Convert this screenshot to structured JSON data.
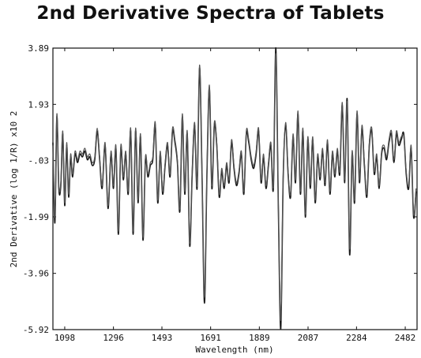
{
  "chart_data": {
    "type": "line",
    "title": "2nd Derivative Spectra of Tablets",
    "xlabel": "Wavelength (nm)",
    "ylabel": "2nd Derivative (log 1/R) x10 2",
    "xlim": [
      1050,
      2530
    ],
    "ylim": [
      -5.92,
      3.89
    ],
    "x_ticks": [
      1098,
      1296,
      1493,
      1691,
      1889,
      2087,
      2284,
      2482
    ],
    "y_ticks": [
      3.89,
      1.93,
      -0.03,
      -1.99,
      -3.96,
      -5.92
    ],
    "y_tick_labels": [
      "3.89",
      "1.93",
      "-.03",
      "-1.99",
      "-3.96",
      "-5.92"
    ],
    "grid": false,
    "series": [
      {
        "color": "#1a1a1a",
        "x": [
          1050,
          1058,
          1066,
          1074,
          1082,
          1090,
          1098,
          1106,
          1114,
          1122,
          1130,
          1140,
          1150,
          1160,
          1170,
          1180,
          1190,
          1200,
          1210,
          1220,
          1230,
          1240,
          1250,
          1262,
          1274,
          1286,
          1296,
          1306,
          1316,
          1326,
          1336,
          1346,
          1356,
          1366,
          1376,
          1386,
          1396,
          1406,
          1416,
          1426,
          1436,
          1446,
          1456,
          1466,
          1476,
          1486,
          1496,
          1506,
          1516,
          1526,
          1536,
          1546,
          1556,
          1566,
          1576,
          1586,
          1596,
          1606,
          1616,
          1626,
          1636,
          1646,
          1656,
          1666,
          1676,
          1686,
          1696,
          1706,
          1716,
          1726,
          1736,
          1746,
          1756,
          1766,
          1776,
          1786,
          1796,
          1806,
          1816,
          1826,
          1836,
          1846,
          1856,
          1866,
          1876,
          1886,
          1896,
          1906,
          1916,
          1926,
          1936,
          1946,
          1956,
          1966,
          1976,
          1986,
          1996,
          2006,
          2016,
          2026,
          2036,
          2046,
          2056,
          2066,
          2076,
          2086,
          2096,
          2106,
          2116,
          2126,
          2136,
          2146,
          2156,
          2166,
          2176,
          2186,
          2196,
          2206,
          2216,
          2226,
          2236,
          2246,
          2256,
          2266,
          2276,
          2286,
          2296,
          2306,
          2316,
          2326,
          2336,
          2346,
          2356,
          2366,
          2376,
          2386,
          2396,
          2406,
          2416,
          2426,
          2436,
          2446,
          2456,
          2466,
          2476,
          2486,
          2496,
          2506,
          2516,
          2526
        ],
        "y": [
          0.6,
          -2.2,
          1.5,
          -1.0,
          -0.9,
          0.9,
          -1.6,
          0.5,
          -1.3,
          0.1,
          -0.6,
          0.2,
          -0.1,
          0.2,
          0.1,
          0.3,
          0.0,
          0.1,
          -0.2,
          0.0,
          1.0,
          0.0,
          -1.0,
          0.5,
          -1.7,
          0.2,
          -1.0,
          0.4,
          -2.6,
          0.4,
          -0.7,
          0.2,
          -1.2,
          1.0,
          -2.6,
          1.0,
          -1.5,
          0.8,
          -2.8,
          0.0,
          -0.6,
          -0.2,
          0.0,
          1.2,
          -1.5,
          0.2,
          -1.2,
          -0.2,
          0.5,
          -0.6,
          1.0,
          0.6,
          -0.1,
          -1.8,
          1.5,
          -1.2,
          0.9,
          -3.0,
          -0.5,
          1.2,
          -1.0,
          3.2,
          -0.5,
          -5.0,
          -0.5,
          2.5,
          -1.0,
          1.2,
          0.5,
          -1.3,
          -0.4,
          -1.0,
          -0.2,
          -0.8,
          0.6,
          -0.3,
          -0.9,
          -0.5,
          0.2,
          -1.2,
          0.9,
          0.6,
          0.0,
          -0.3,
          0.2,
          1.0,
          -0.8,
          0.1,
          -1.0,
          -0.2,
          0.5,
          -1.0,
          3.9,
          -1.5,
          -5.9,
          -0.6,
          1.2,
          -0.5,
          -1.3,
          0.8,
          -0.8,
          1.6,
          -1.2,
          1.0,
          -2.0,
          0.7,
          -1.0,
          0.7,
          -1.5,
          0.1,
          -0.7,
          0.3,
          -0.9,
          0.6,
          -1.2,
          0.2,
          -0.6,
          0.3,
          -0.5,
          1.9,
          -0.8,
          2.1,
          -3.3,
          0.2,
          -1.5,
          1.6,
          -0.8,
          1.1,
          -0.2,
          -1.3,
          0.5,
          1.0,
          -0.5,
          0.1,
          -1.0,
          0.2,
          0.4,
          0.0,
          0.6,
          0.9,
          -0.1,
          0.9,
          0.5,
          0.7,
          0.9,
          -0.5,
          -1.0,
          0.4,
          -2.0,
          -1.1
        ]
      },
      {
        "color": "#555555",
        "x": [
          1050,
          1058,
          1066,
          1074,
          1082,
          1090,
          1098,
          1106,
          1114,
          1122,
          1130,
          1140,
          1150,
          1160,
          1170,
          1180,
          1190,
          1200,
          1210,
          1220,
          1230,
          1240,
          1250,
          1262,
          1274,
          1286,
          1296,
          1306,
          1316,
          1326,
          1336,
          1346,
          1356,
          1366,
          1376,
          1386,
          1396,
          1406,
          1416,
          1426,
          1436,
          1446,
          1456,
          1466,
          1476,
          1486,
          1496,
          1506,
          1516,
          1526,
          1536,
          1546,
          1556,
          1566,
          1576,
          1586,
          1596,
          1606,
          1616,
          1626,
          1636,
          1646,
          1656,
          1666,
          1676,
          1686,
          1696,
          1706,
          1716,
          1726,
          1736,
          1746,
          1756,
          1766,
          1776,
          1786,
          1796,
          1806,
          1816,
          1826,
          1836,
          1846,
          1856,
          1866,
          1876,
          1886,
          1896,
          1906,
          1916,
          1926,
          1936,
          1946,
          1956,
          1966,
          1976,
          1986,
          1996,
          2006,
          2016,
          2026,
          2036,
          2046,
          2056,
          2066,
          2076,
          2086,
          2096,
          2106,
          2116,
          2126,
          2136,
          2146,
          2156,
          2166,
          2176,
          2186,
          2196,
          2206,
          2216,
          2226,
          2236,
          2246,
          2256,
          2266,
          2276,
          2286,
          2296,
          2306,
          2316,
          2326,
          2336,
          2346,
          2356,
          2366,
          2376,
          2386,
          2396,
          2406,
          2416,
          2426,
          2436,
          2446,
          2456,
          2466,
          2476,
          2486,
          2496,
          2506,
          2516,
          2526
        ],
        "y": [
          0.5,
          -2.0,
          1.6,
          -0.9,
          -0.8,
          1.0,
          -1.5,
          0.6,
          -1.2,
          0.2,
          -0.5,
          0.3,
          0.0,
          0.3,
          0.2,
          0.4,
          0.1,
          0.2,
          -0.1,
          0.1,
          1.1,
          0.1,
          -0.9,
          0.6,
          -1.6,
          0.3,
          -0.9,
          0.5,
          -2.5,
          0.5,
          -0.6,
          0.3,
          -1.1,
          1.1,
          -2.5,
          1.1,
          -1.4,
          0.9,
          -2.7,
          0.1,
          -0.5,
          -0.1,
          0.1,
          1.3,
          -1.4,
          0.3,
          -1.1,
          -0.1,
          0.6,
          -0.5,
          1.1,
          0.7,
          0.0,
          -1.7,
          1.6,
          -1.1,
          1.0,
          -2.9,
          -0.4,
          1.3,
          -0.9,
          3.3,
          -0.4,
          -4.8,
          -0.4,
          2.6,
          -0.9,
          1.3,
          0.6,
          -1.2,
          -0.3,
          -0.9,
          -0.1,
          -0.7,
          0.7,
          -0.2,
          -0.8,
          -0.4,
          0.3,
          -1.1,
          1.0,
          0.7,
          0.1,
          -0.2,
          0.3,
          1.1,
          -0.7,
          0.2,
          -0.9,
          -0.1,
          0.6,
          -0.9,
          3.7,
          -1.4,
          -5.6,
          -0.5,
          1.3,
          -0.4,
          -1.2,
          0.9,
          -0.7,
          1.7,
          -1.1,
          1.1,
          -1.9,
          0.8,
          -0.9,
          0.8,
          -1.4,
          0.2,
          -0.6,
          0.4,
          -0.8,
          0.7,
          -1.1,
          0.3,
          -0.5,
          0.4,
          -0.4,
          2.0,
          -0.7,
          2.0,
          -3.1,
          0.3,
          -1.4,
          1.7,
          -0.7,
          1.2,
          -0.1,
          -1.2,
          0.6,
          1.1,
          -0.4,
          0.2,
          -0.9,
          0.3,
          0.5,
          0.1,
          0.7,
          1.0,
          0.0,
          1.0,
          0.6,
          0.8,
          0.8,
          -0.4,
          -0.9,
          0.5,
          -1.9,
          -1.0
        ]
      }
    ]
  }
}
